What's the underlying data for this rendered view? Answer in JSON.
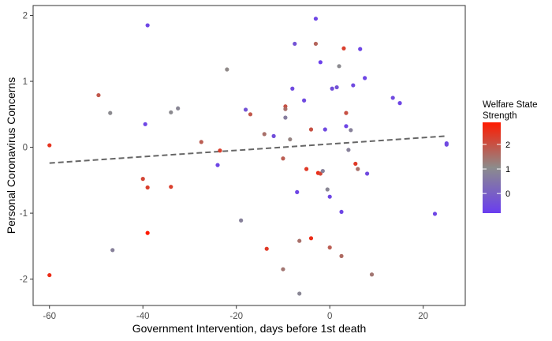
{
  "chart_data": {
    "type": "scatter",
    "xlabel": "Government Intervention, days before 1st death",
    "ylabel": "Personal Coronavirus Concerns",
    "xlim": [
      -63.5,
      29
    ],
    "ylim": [
      -2.4,
      2.15
    ],
    "x_ticks": [
      -60,
      -40,
      -20,
      0,
      20
    ],
    "y_ticks": [
      -2,
      -1,
      0,
      1,
      2
    ],
    "grid": false,
    "color_legend": {
      "title_lines": [
        "Welfare State",
        "Strength"
      ],
      "ticks": [
        2,
        1,
        0
      ],
      "range": [
        -0.8,
        2.9
      ],
      "low_color": "#6a3df0",
      "mid_color": "#8c8c8c",
      "high_color": "#ff1a00",
      "placement": "right"
    },
    "trend_line": {
      "style": "dashed",
      "color": "#666666",
      "x": [
        -60,
        25
      ],
      "y": [
        -0.24,
        0.17
      ]
    },
    "points": [
      {
        "x": -60,
        "y": 0.03,
        "z": 2.5
      },
      {
        "x": -60,
        "y": -1.94,
        "z": 2.6
      },
      {
        "x": -49.5,
        "y": 0.79,
        "z": 1.9
      },
      {
        "x": -47,
        "y": 0.52,
        "z": 1.0
      },
      {
        "x": -46.5,
        "y": -1.56,
        "z": 0.8
      },
      {
        "x": -40,
        "y": -0.48,
        "z": 2.2
      },
      {
        "x": -39.5,
        "y": 0.35,
        "z": -0.6
      },
      {
        "x": -39,
        "y": 1.85,
        "z": -0.6
      },
      {
        "x": -39,
        "y": -0.61,
        "z": 2.3
      },
      {
        "x": -39,
        "y": -1.3,
        "z": 2.9
      },
      {
        "x": -34,
        "y": 0.53,
        "z": 1.0
      },
      {
        "x": -34,
        "y": -0.6,
        "z": 2.3
      },
      {
        "x": -32.5,
        "y": 0.59,
        "z": 0.9
      },
      {
        "x": -27.5,
        "y": 0.08,
        "z": 1.8
      },
      {
        "x": -23.5,
        "y": -0.05,
        "z": 2.3
      },
      {
        "x": -24,
        "y": -0.27,
        "z": -0.6
      },
      {
        "x": -22,
        "y": 1.18,
        "z": 1.1
      },
      {
        "x": -19,
        "y": -1.11,
        "z": 0.8
      },
      {
        "x": -18,
        "y": 0.57,
        "z": -0.3
      },
      {
        "x": -17,
        "y": 0.5,
        "z": 1.9
      },
      {
        "x": -14,
        "y": 0.2,
        "z": 1.5
      },
      {
        "x": -13.5,
        "y": -1.54,
        "z": 2.4
      },
      {
        "x": -12,
        "y": 0.17,
        "z": -0.4
      },
      {
        "x": -10,
        "y": -0.17,
        "z": 1.8
      },
      {
        "x": -10,
        "y": -1.85,
        "z": 1.4
      },
      {
        "x": -9.5,
        "y": 0.62,
        "z": 2.0
      },
      {
        "x": -9.5,
        "y": 0.58,
        "z": 1.5
      },
      {
        "x": -9.5,
        "y": 0.45,
        "z": 0.7
      },
      {
        "x": -8.5,
        "y": 0.12,
        "z": 1.2
      },
      {
        "x": -8,
        "y": 0.89,
        "z": -0.5
      },
      {
        "x": -7.5,
        "y": 1.57,
        "z": -0.3
      },
      {
        "x": -7,
        "y": -0.68,
        "z": -0.6
      },
      {
        "x": -6.5,
        "y": -1.42,
        "z": 1.5
      },
      {
        "x": -6.5,
        "y": -2.22,
        "z": 0.9
      },
      {
        "x": -5.5,
        "y": 0.71,
        "z": -0.5
      },
      {
        "x": -5,
        "y": -0.33,
        "z": 2.4
      },
      {
        "x": -4,
        "y": 0.27,
        "z": 2.0
      },
      {
        "x": -4,
        "y": -1.38,
        "z": 2.6
      },
      {
        "x": -3,
        "y": 1.95,
        "z": -0.6
      },
      {
        "x": -3,
        "y": 1.57,
        "z": 1.7
      },
      {
        "x": -2.5,
        "y": -0.39,
        "z": 2.6
      },
      {
        "x": -2,
        "y": -0.4,
        "z": 2.2
      },
      {
        "x": -1.5,
        "y": -0.36,
        "z": 0.8
      },
      {
        "x": -2,
        "y": 1.29,
        "z": -0.7
      },
      {
        "x": -1,
        "y": 0.27,
        "z": -0.5
      },
      {
        "x": -0.5,
        "y": -0.64,
        "z": 0.9
      },
      {
        "x": 0,
        "y": -0.75,
        "z": -0.6
      },
      {
        "x": 0,
        "y": -1.52,
        "z": 1.8
      },
      {
        "x": 0.5,
        "y": 0.89,
        "z": -0.4
      },
      {
        "x": 1.5,
        "y": 0.91,
        "z": -0.3
      },
      {
        "x": 2,
        "y": 1.23,
        "z": 1.0
      },
      {
        "x": 2.5,
        "y": -0.98,
        "z": -0.6
      },
      {
        "x": 2.5,
        "y": -1.65,
        "z": 1.6
      },
      {
        "x": 3,
        "y": 1.5,
        "z": 2.3
      },
      {
        "x": 3.5,
        "y": 0.32,
        "z": -0.6
      },
      {
        "x": 3.5,
        "y": 0.52,
        "z": 2.0
      },
      {
        "x": 4,
        "y": -0.04,
        "z": 0.8
      },
      {
        "x": 4.5,
        "y": 0.26,
        "z": 0.8
      },
      {
        "x": 5,
        "y": 0.94,
        "z": -0.5
      },
      {
        "x": 5.5,
        "y": -0.25,
        "z": 2.4
      },
      {
        "x": 6,
        "y": -0.33,
        "z": 1.5
      },
      {
        "x": 6.5,
        "y": 1.49,
        "z": -0.6
      },
      {
        "x": 7.5,
        "y": 1.05,
        "z": -0.6
      },
      {
        "x": 8,
        "y": -0.4,
        "z": -0.5
      },
      {
        "x": 9,
        "y": -1.93,
        "z": 1.4
      },
      {
        "x": 13.5,
        "y": 0.75,
        "z": -0.5
      },
      {
        "x": 15,
        "y": 0.67,
        "z": -0.6
      },
      {
        "x": 22.5,
        "y": -1.01,
        "z": -0.6
      },
      {
        "x": 25,
        "y": 0.06,
        "z": -0.6
      },
      {
        "x": 25,
        "y": 0.04,
        "z": -0.5
      }
    ]
  }
}
